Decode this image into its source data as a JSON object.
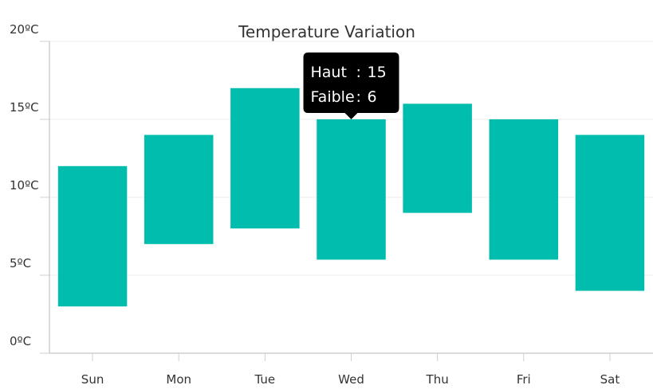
{
  "chart_data": {
    "type": "bar",
    "title": "Temperature Variation",
    "categories": [
      "Sun",
      "Mon",
      "Tue",
      "Wed",
      "Thu",
      "Fri",
      "Sat"
    ],
    "series": [
      {
        "low": [
          3,
          7,
          8,
          6,
          9,
          6,
          4
        ],
        "high": [
          12,
          14,
          17,
          15,
          16,
          15,
          14
        ]
      }
    ],
    "ylim": [
      0,
      20
    ],
    "yticks": [
      0,
      5,
      10,
      15,
      20
    ],
    "ytick_suffix": "ºC",
    "grid": true,
    "bar_color": "#00bdae",
    "tooltip": {
      "category": "Wed",
      "lines": [
        {
          "label": "Haut",
          "separator": ":",
          "value": "15"
        },
        {
          "label": "Faible",
          "separator": ":",
          "value": "6"
        }
      ]
    }
  }
}
